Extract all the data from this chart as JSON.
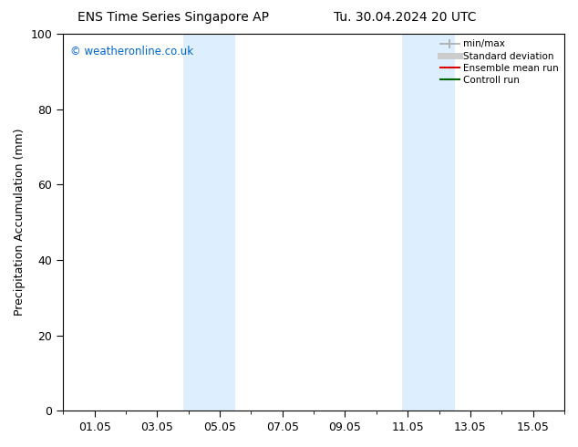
{
  "title_left": "ENS Time Series Singapore AP",
  "title_right": "Tu. 30.04.2024 20 UTC",
  "ylabel": "Precipitation Accumulation (mm)",
  "ylim": [
    0,
    100
  ],
  "yticks": [
    0,
    20,
    40,
    60,
    80,
    100
  ],
  "xtick_labels": [
    "01.05",
    "03.05",
    "05.05",
    "07.05",
    "09.05",
    "11.05",
    "13.05",
    "15.05"
  ],
  "xtick_positions": [
    1,
    3,
    5,
    7,
    9,
    11,
    13,
    15
  ],
  "xlim": [
    0.0,
    16.0
  ],
  "bg_color": "#ffffff",
  "plot_bg_color": "#ffffff",
  "shaded_bands": [
    {
      "x_start": 3.83,
      "x_end": 5.5,
      "color": "#ddeeff"
    },
    {
      "x_start": 10.83,
      "x_end": 12.5,
      "color": "#ddeeff"
    }
  ],
  "watermark_text": "© weatheronline.co.uk",
  "watermark_color": "#0066cc",
  "legend_items": [
    {
      "label": "min/max",
      "color": "#aaaaaa",
      "lw": 1.2,
      "ls": "-",
      "type": "minmax"
    },
    {
      "label": "Standard deviation",
      "color": "#cccccc",
      "lw": 5,
      "ls": "-",
      "type": "line"
    },
    {
      "label": "Ensemble mean run",
      "color": "#dd0000",
      "lw": 1.5,
      "ls": "-",
      "type": "line"
    },
    {
      "label": "Controll run",
      "color": "#006600",
      "lw": 1.5,
      "ls": "-",
      "type": "line"
    }
  ],
  "border_color": "#000000",
  "tick_color": "#000000",
  "font_size": 9,
  "title_font_size": 10,
  "minor_tick_interval": 1
}
